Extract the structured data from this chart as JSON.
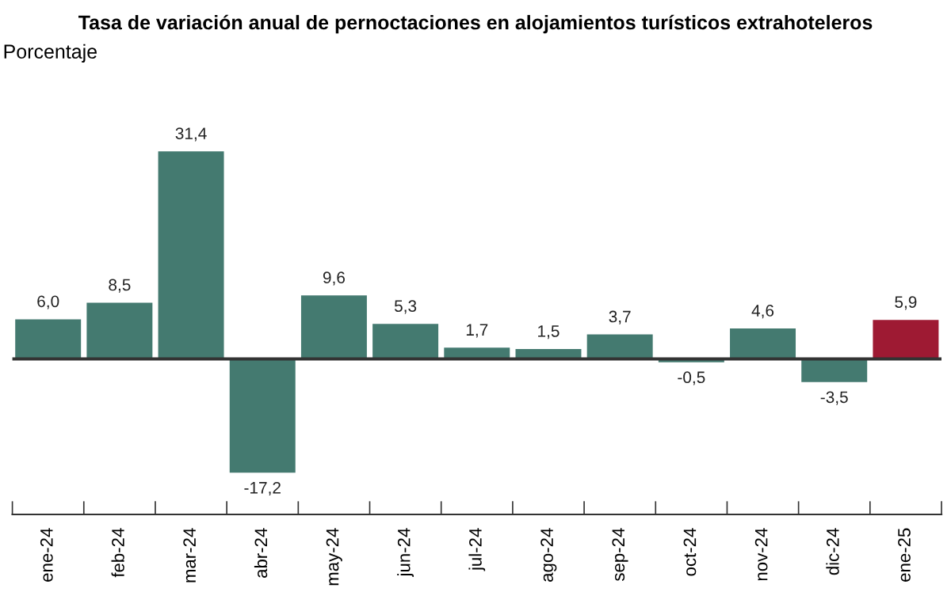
{
  "chart_data": {
    "type": "bar",
    "title": "Tasa de variación anual de pernoctaciones en alojamientos turísticos extrahoteleros",
    "ylabel": "Porcentaje",
    "categories": [
      "ene-24",
      "feb-24",
      "mar-24",
      "abr-24",
      "may-24",
      "jun-24",
      "jul-24",
      "ago-24",
      "sep-24",
      "oct-24",
      "nov-24",
      "dic-24",
      "ene-25"
    ],
    "values": [
      6.0,
      8.5,
      31.4,
      -17.2,
      9.6,
      5.3,
      1.7,
      1.5,
      3.7,
      -0.5,
      4.6,
      -3.5,
      5.9
    ],
    "value_labels": [
      "6,0",
      "8,5",
      "31,4",
      "-17,2",
      "9,6",
      "5,3",
      "1,7",
      "1,5",
      "3,7",
      "-0,5",
      "4,6",
      "-3,5",
      "5,9"
    ],
    "colors": [
      "#447a70",
      "#447a70",
      "#447a70",
      "#447a70",
      "#447a70",
      "#447a70",
      "#447a70",
      "#447a70",
      "#447a70",
      "#447a70",
      "#447a70",
      "#447a70",
      "#9e1a33"
    ],
    "ref_lines": [
      {
        "axis": "y",
        "value": 0,
        "color": "#333333"
      }
    ],
    "grid": false
  }
}
